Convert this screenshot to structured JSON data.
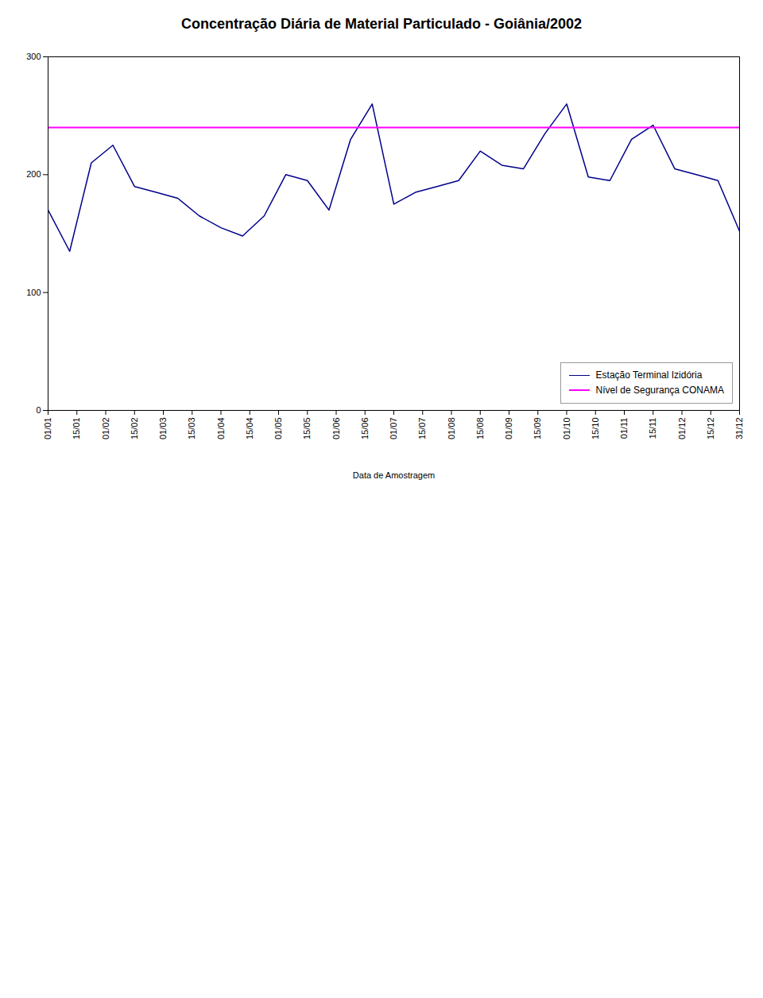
{
  "chart_data": {
    "type": "line",
    "title": "Concentração Diária de Material Particulado - Goiânia/2002",
    "xlabel": "Data de Amostragem",
    "x": [
      0,
      1,
      2,
      3,
      4,
      5,
      6,
      7,
      8,
      9,
      10,
      11,
      12,
      13,
      14,
      15,
      16,
      17,
      18,
      19,
      20,
      21,
      22,
      23,
      24,
      25,
      26,
      27,
      28,
      29,
      30,
      31,
      32
    ],
    "xlim": [
      0,
      32
    ],
    "xticks": [
      {
        "value": 0,
        "label": "01/01"
      },
      {
        "value": 1.3333333333333333,
        "label": "15/01"
      },
      {
        "value": 2.6666666666666665,
        "label": "01/02"
      },
      {
        "value": 4,
        "label": "15/02"
      },
      {
        "value": 5.333333333333333,
        "label": "01/03"
      },
      {
        "value": 6.666666666666667,
        "label": "15/03"
      },
      {
        "value": 8,
        "label": "01/04"
      },
      {
        "value": 9.333333333333334,
        "label": "15/04"
      },
      {
        "value": 10.666666666666666,
        "label": "01/05"
      },
      {
        "value": 12,
        "label": "15/05"
      },
      {
        "value": 13.333333333333334,
        "label": "01/06"
      },
      {
        "value": 14.666666666666666,
        "label": "15/06"
      },
      {
        "value": 16,
        "label": "01/07"
      },
      {
        "value": 17.333333333333332,
        "label": "15/07"
      },
      {
        "value": 18.666666666666668,
        "label": "01/08"
      },
      {
        "value": 20,
        "label": "15/08"
      },
      {
        "value": 21.333333333333332,
        "label": "01/09"
      },
      {
        "value": 22.666666666666668,
        "label": "15/09"
      },
      {
        "value": 24,
        "label": "01/10"
      },
      {
        "value": 25.333333333333332,
        "label": "15/10"
      },
      {
        "value": 26.666666666666668,
        "label": "01/11"
      },
      {
        "value": 28,
        "label": "15/11"
      },
      {
        "value": 29.333333333333332,
        "label": "01/12"
      },
      {
        "value": 30.666666666666668,
        "label": "15/12"
      },
      {
        "value": 32,
        "label": "31/12"
      }
    ],
    "ylim": [
      0,
      300
    ],
    "yticks": [
      0,
      100,
      200,
      300
    ],
    "legend": "lower right",
    "series": [
      {
        "name": "Estação Terminal Izidória",
        "color": "#00008B",
        "type": "line",
        "values": [
          170,
          135,
          210,
          225,
          190,
          185,
          180,
          165,
          155,
          148,
          165,
          200,
          195,
          170,
          230,
          260,
          175,
          185,
          190,
          195,
          220,
          208,
          205,
          235,
          260,
          198,
          195,
          230,
          242,
          205,
          200,
          195,
          152
        ]
      },
      {
        "name": "Nível de Segurança CONAMA",
        "color": "#FF00FF",
        "type": "hline",
        "y": 240
      }
    ]
  }
}
